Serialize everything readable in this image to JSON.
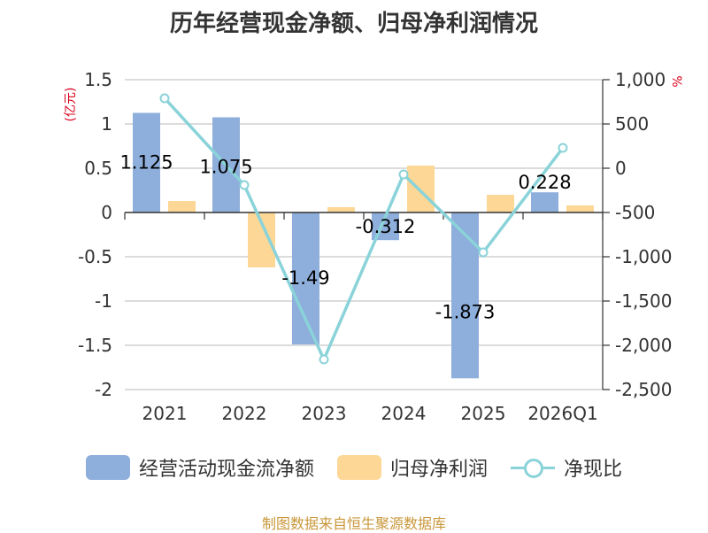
{
  "chart_data": {
    "type": "bar",
    "title": "历年经营现金净额、归母净利润情况",
    "categories": [
      "2021",
      "2022",
      "2023",
      "2024",
      "2025",
      "2026Q1"
    ],
    "series": [
      {
        "name": "经营活动现金流净额",
        "type": "bar",
        "axis": "left",
        "color": "#8eaedb",
        "values": [
          1.125,
          1.075,
          -1.49,
          -0.312,
          -1.873,
          0.228
        ],
        "labels": [
          "1.125",
          "1.075",
          "-1.49",
          "-0.312",
          "-1.873",
          "0.228"
        ]
      },
      {
        "name": "归母净利润",
        "type": "bar",
        "axis": "left",
        "color": "#fdd796",
        "values": [
          0.13,
          -0.62,
          0.06,
          0.53,
          0.2,
          0.08
        ]
      },
      {
        "name": "净现比",
        "type": "line",
        "axis": "right",
        "color": "#8ad3d9",
        "values": [
          790,
          -190,
          -2160,
          -70,
          -950,
          230
        ]
      }
    ],
    "left_axis": {
      "unit": "(亿元)",
      "min": -2,
      "max": 1.5,
      "ticks": [
        1.5,
        1,
        0.5,
        0,
        -0.5,
        -1,
        -1.5,
        -2
      ],
      "tick_labels": [
        "1.5",
        "1",
        "0.5",
        "0",
        "-0.5",
        "-1",
        "-1.5",
        "-2"
      ]
    },
    "right_axis": {
      "unit": "%",
      "min": -2500,
      "max": 1000,
      "ticks": [
        1000,
        500,
        0,
        -500,
        -1000,
        -1500,
        -2000,
        -2500
      ],
      "tick_labels": [
        "1,000",
        "500",
        "0",
        "-500",
        "-1,000",
        "-1,500",
        "-2,000",
        "-2,500"
      ]
    },
    "grid": true,
    "legend_position": "bottom"
  },
  "footer": {
    "source": "制图数据来自恒生聚源数据库"
  }
}
